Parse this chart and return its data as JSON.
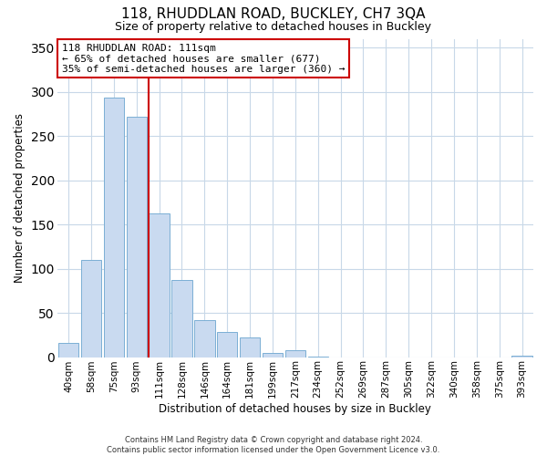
{
  "title": "118, RHUDDLAN ROAD, BUCKLEY, CH7 3QA",
  "subtitle": "Size of property relative to detached houses in Buckley",
  "xlabel": "Distribution of detached houses by size in Buckley",
  "ylabel": "Number of detached properties",
  "footer_line1": "Contains HM Land Registry data © Crown copyright and database right 2024.",
  "footer_line2": "Contains public sector information licensed under the Open Government Licence v3.0.",
  "bins": [
    "40sqm",
    "58sqm",
    "75sqm",
    "93sqm",
    "111sqm",
    "128sqm",
    "146sqm",
    "164sqm",
    "181sqm",
    "199sqm",
    "217sqm",
    "234sqm",
    "252sqm",
    "269sqm",
    "287sqm",
    "305sqm",
    "322sqm",
    "340sqm",
    "358sqm",
    "375sqm",
    "393sqm"
  ],
  "values": [
    16,
    110,
    293,
    272,
    163,
    87,
    42,
    28,
    22,
    5,
    8,
    1,
    0,
    0,
    0,
    0,
    0,
    0,
    0,
    0,
    2
  ],
  "bar_color": "#c9daf0",
  "bar_edge_color": "#7bafd4",
  "vline_color": "#cc0000",
  "vline_bin_index": 4,
  "annotation_title": "118 RHUDDLAN ROAD: 111sqm",
  "annotation_line1": "← 65% of detached houses are smaller (677)",
  "annotation_line2": "35% of semi-detached houses are larger (360) →",
  "annotation_box_color": "#ffffff",
  "annotation_border_color": "#cc0000",
  "ylim": [
    0,
    360
  ],
  "yticks": [
    0,
    50,
    100,
    150,
    200,
    250,
    300,
    350
  ],
  "background_color": "#ffffff",
  "grid_color": "#c8d8e8",
  "title_fontsize": 11,
  "subtitle_fontsize": 9
}
